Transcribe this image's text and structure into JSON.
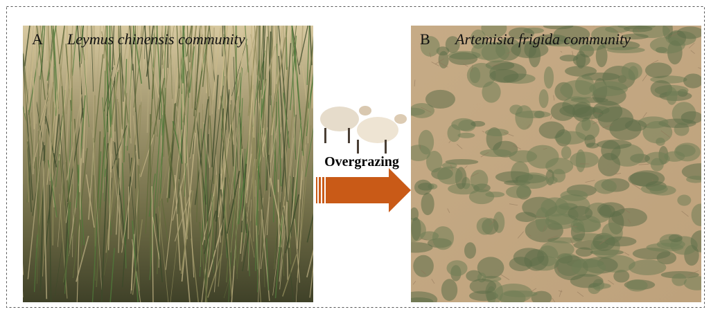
{
  "panels": [
    {
      "letter": "A",
      "caption": "Leymus chinensis community"
    },
    {
      "letter": "B",
      "caption": "Artemisia frigida community"
    }
  ],
  "arrow": {
    "label": "Overgrazing"
  }
}
